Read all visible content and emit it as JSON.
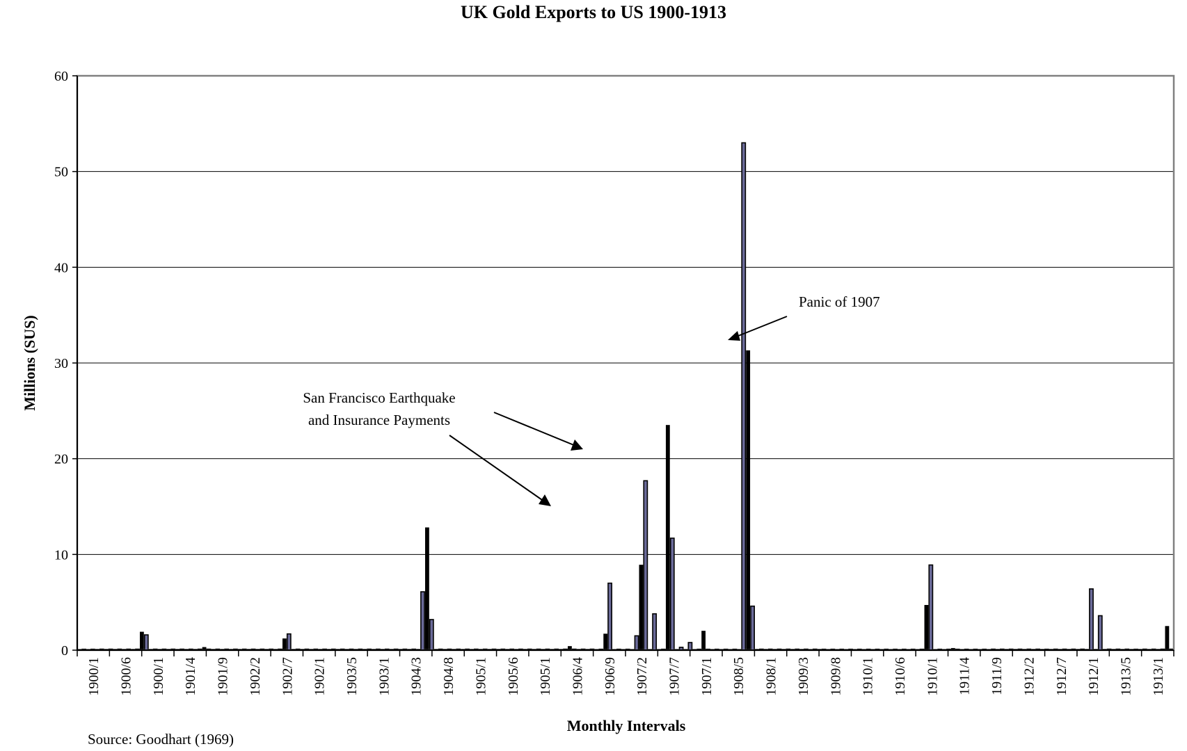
{
  "chart_data": {
    "type": "bar",
    "title": "UK Gold Exports to US 1900-1913",
    "xlabel": "Monthly Intervals",
    "ylabel": "Millions (SUS)",
    "ylim": [
      0,
      60
    ],
    "yticks": [
      0,
      10,
      20,
      30,
      40,
      50,
      60
    ],
    "grid": true,
    "legend": "none",
    "x_tick_labels": [
      "1900/1",
      "1900/6",
      "1900/1",
      "1901/4",
      "1901/9",
      "1902/2",
      "1902/7",
      "1902/1",
      "1903/5",
      "1903/1",
      "1904/3",
      "1904/8",
      "1905/1",
      "1905/6",
      "1905/1",
      "1906/4",
      "1906/9",
      "1907/2",
      "1907/7",
      "1907/1",
      "1908/5",
      "1908/1",
      "1909/3",
      "1909/8",
      "1910/1",
      "1910/6",
      "1910/1",
      "1911/4",
      "1911/9",
      "1912/2",
      "1912/7",
      "1912/1",
      "1913/5",
      "1913/1"
    ],
    "series": [
      {
        "values": [
          0.1,
          0.1,
          0.1,
          0.1,
          0,
          0,
          0,
          0,
          0,
          0,
          0,
          0,
          0,
          0,
          1.9,
          1.6,
          0,
          0,
          0,
          0,
          0,
          0,
          0,
          0,
          0,
          0,
          0,
          0,
          0.3,
          0,
          0,
          0,
          0,
          0,
          0,
          0,
          0,
          0,
          0,
          0,
          0,
          0,
          0,
          0,
          0,
          0,
          1.2,
          1.7,
          0,
          0,
          0,
          0,
          0,
          0,
          0,
          0,
          0,
          0,
          0,
          0,
          0,
          0,
          0,
          0,
          0,
          0,
          0,
          0,
          0,
          0,
          0,
          0,
          0,
          0,
          0,
          0,
          0,
          6.1,
          12.8,
          3.2,
          0,
          0,
          0,
          0,
          0,
          0,
          0,
          0,
          0,
          0,
          0,
          0,
          0,
          0,
          0,
          0,
          0,
          0,
          0,
          0,
          0,
          0,
          0,
          0,
          0,
          0,
          0,
          0,
          0,
          0,
          0.4,
          0,
          0,
          0,
          0,
          0,
          0.1,
          0.1,
          1.7,
          7.0,
          0.1,
          0.1,
          0.1,
          0.1,
          0.1,
          1.5,
          8.9,
          17.7,
          0.1,
          3.8,
          0.1,
          0.1,
          23.5,
          11.7,
          0.1,
          0.3,
          0.1,
          0.8,
          0.1,
          0.1,
          2.0,
          0.1,
          0.1,
          0.1,
          0.1,
          0.1,
          0.1,
          0.1,
          0.1,
          53.0,
          31.3,
          4.6,
          0,
          0,
          0,
          0,
          0,
          0,
          0,
          0,
          0,
          0,
          0,
          0,
          0.1,
          0,
          0,
          0.1,
          0.1,
          0.1,
          0.1,
          0.1,
          0.1,
          0.1,
          0.1,
          0.1,
          0.1,
          0.1,
          0.1,
          0.1,
          0.1,
          0.1,
          0.1,
          0.1,
          0.1,
          0.1,
          0.1,
          0.1,
          0.1,
          0.1,
          4.7,
          8.9,
          0.1,
          0.1,
          0.1,
          0.1,
          0.2,
          0.1,
          0.1,
          0.1,
          0.1,
          0.1,
          0.1,
          0.1,
          0.1,
          0,
          0,
          0,
          0,
          0,
          0,
          0,
          0,
          0,
          0,
          0,
          0,
          0.1,
          0,
          0,
          0,
          0,
          0,
          0,
          0,
          0,
          0,
          6.4,
          0,
          3.6,
          0,
          0,
          0,
          0,
          0,
          0,
          0,
          0.1,
          0,
          0,
          0,
          0,
          0,
          0,
          2.5,
          0
        ]
      }
    ],
    "annotations": [
      {
        "text": "Panic of 1907"
      },
      {
        "lines": [
          "San Francisco Earthquake",
          "and Insurance Payments"
        ]
      }
    ],
    "source": "Source: Goodhart (1969)"
  }
}
